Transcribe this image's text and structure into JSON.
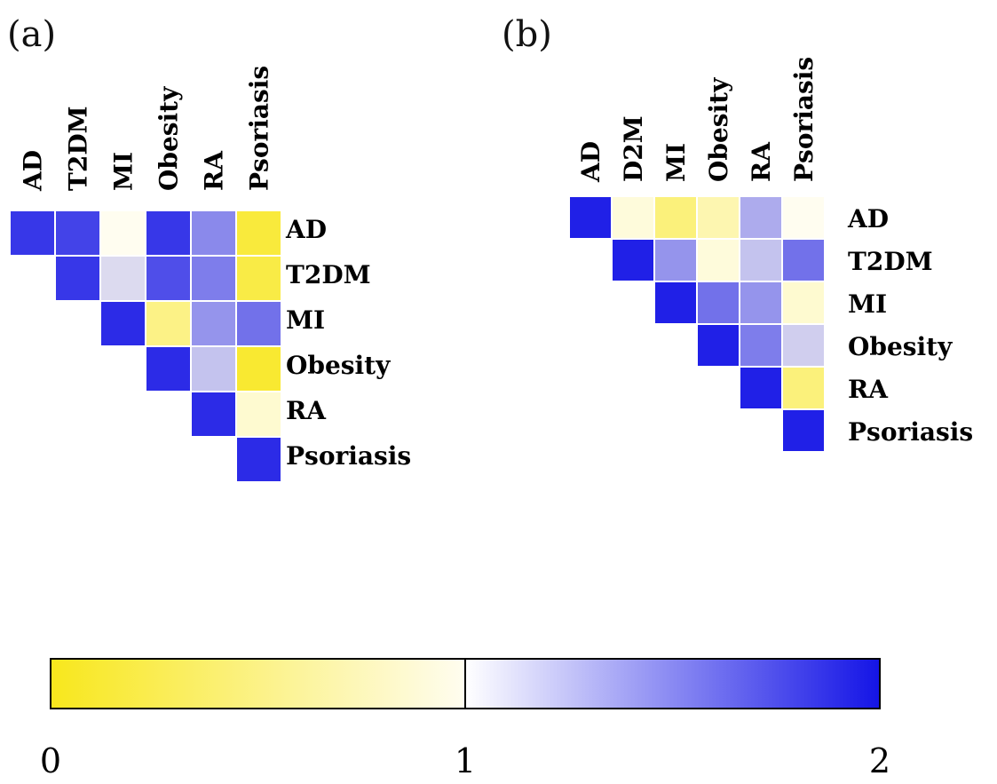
{
  "colors": {
    "low": "#f8e71c",
    "mid": "#fffdf0",
    "high": "#1414e6"
  },
  "chart_data": [
    {
      "type": "heatmap",
      "panel_label": "(a)",
      "col_labels": [
        "AD",
        "T2DM",
        "MI",
        "Obesity",
        "RA",
        "Psoriasis"
      ],
      "row_labels": [
        "AD",
        "T2DM",
        "MI",
        "Obesity",
        "RA",
        "Psoriasis"
      ],
      "matrix": [
        [
          1.85,
          1.8,
          1.0,
          1.85,
          1.5,
          0.15
        ],
        [
          null,
          1.85,
          1.15,
          1.75,
          1.55,
          0.2
        ],
        [
          null,
          null,
          1.9,
          0.5,
          1.45,
          1.6
        ],
        [
          null,
          null,
          null,
          1.9,
          1.25,
          0.1
        ],
        [
          null,
          null,
          null,
          null,
          1.9,
          0.85
        ],
        [
          null,
          null,
          null,
          null,
          null,
          1.9
        ]
      ]
    },
    {
      "type": "heatmap",
      "panel_label": "(b)",
      "col_labels": [
        "AD",
        "D2M",
        "MI",
        "Obesity",
        "RA",
        "Psoriasis"
      ],
      "row_labels": [
        "AD",
        "T2DM",
        "MI",
        "Obesity",
        "RA",
        "Psoriasis"
      ],
      "matrix": [
        [
          1.95,
          0.9,
          0.45,
          0.7,
          1.35,
          1.0
        ],
        [
          null,
          1.95,
          1.45,
          0.9,
          1.25,
          1.6
        ],
        [
          null,
          null,
          1.95,
          1.6,
          1.45,
          0.85
        ],
        [
          null,
          null,
          null,
          1.95,
          1.55,
          1.2
        ],
        [
          null,
          null,
          null,
          null,
          1.95,
          0.45
        ],
        [
          null,
          null,
          null,
          null,
          null,
          1.95
        ]
      ]
    }
  ],
  "colorbar": {
    "min": 0,
    "mid": 1,
    "max": 2,
    "ticks": [
      "0",
      "1",
      "2"
    ]
  }
}
